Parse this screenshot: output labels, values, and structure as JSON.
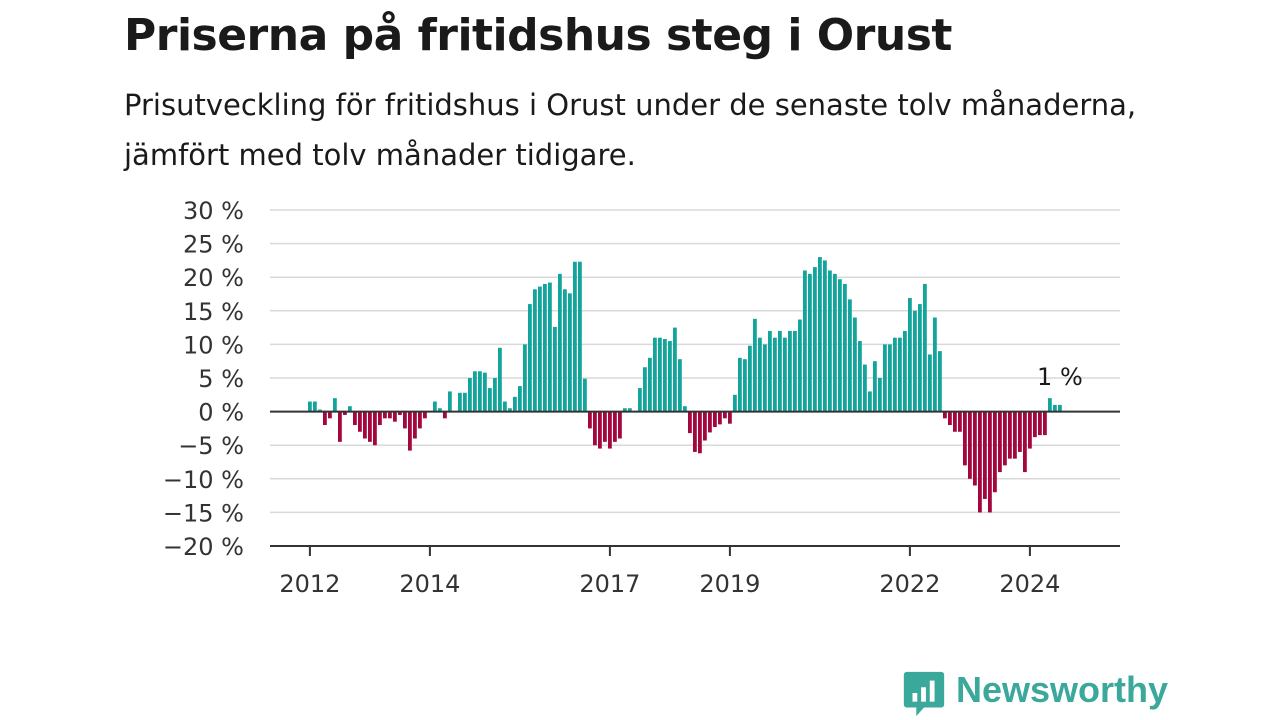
{
  "title": "Priserna på fritidshus steg i Orust",
  "subtitle": "Prisutveckling för fritidshus i Orust under de senaste tolv månaderna, jämfört med tolv månader tidigare.",
  "brand": {
    "name": "Newsworthy",
    "color": "#3aa89a"
  },
  "colors": {
    "positive": "#13a49c",
    "negative": "#a3073e",
    "grid": "#d9d9d9",
    "axis": "#333333"
  },
  "chart_data": {
    "type": "bar",
    "x_start": "2012-01",
    "frequency": "monthly",
    "ylim": [
      -20,
      30
    ],
    "yticks": [
      30,
      25,
      20,
      15,
      10,
      5,
      0,
      -5,
      -10,
      -15,
      -20
    ],
    "ytick_labels": [
      "30 %",
      "25 %",
      "20 %",
      "15 %",
      "10 %",
      "5 %",
      "0 %",
      "−5 %",
      "−10 %",
      "−15 %",
      "−20 %"
    ],
    "xticks": [
      "2012",
      "2014",
      "2017",
      "2019",
      "2022",
      "2024"
    ],
    "grid": true,
    "annotation": {
      "text": "1 %",
      "target": "last"
    },
    "values": [
      1.5,
      1.5,
      0.3,
      -2,
      -1,
      2,
      -4.5,
      -0.5,
      0.8,
      -2,
      -3,
      -4,
      -4.5,
      -5,
      -2,
      -1,
      -1,
      -1.5,
      -0.5,
      -2.5,
      -5.8,
      -4,
      -2.5,
      -1,
      0,
      1.5,
      0.5,
      -1,
      3,
      0,
      2.8,
      2.8,
      5,
      6,
      6,
      5.8,
      3.5,
      5,
      9.5,
      1.5,
      0.5,
      2.2,
      3.8,
      10,
      16,
      18.2,
      18.6,
      19,
      19.2,
      12.6,
      20.5,
      18.2,
      17.6,
      22.3,
      22.3,
      4.9,
      -2.5,
      -5,
      -5.5,
      -4.5,
      -5.5,
      -4.5,
      -4,
      0.5,
      0.5,
      0,
      3.5,
      6.6,
      8,
      11,
      11,
      10.8,
      10.5,
      12.5,
      7.8,
      0.8,
      -3.2,
      -6,
      -6.2,
      -4.3,
      -3.1,
      -2.3,
      -1.9,
      -1,
      -1.8,
      2.5,
      8,
      7.8,
      9.8,
      13.8,
      11,
      10,
      12,
      11,
      12,
      11,
      12,
      12,
      13.7,
      21,
      20.5,
      21.5,
      23,
      22.5,
      21,
      20.5,
      19.7,
      19,
      16.7,
      14,
      10.5,
      7,
      3,
      7.5,
      5,
      10,
      10,
      11,
      11,
      12,
      16.9,
      15,
      16,
      19,
      8.5,
      14,
      9,
      -1,
      -2,
      -3,
      -3,
      -8,
      -10,
      -11,
      -15,
      -13,
      -15,
      -12,
      -9,
      -8,
      -7,
      -7,
      -6,
      -9,
      -5.5,
      -3.8,
      -3.5,
      -3.5,
      2,
      1,
      1
    ]
  }
}
